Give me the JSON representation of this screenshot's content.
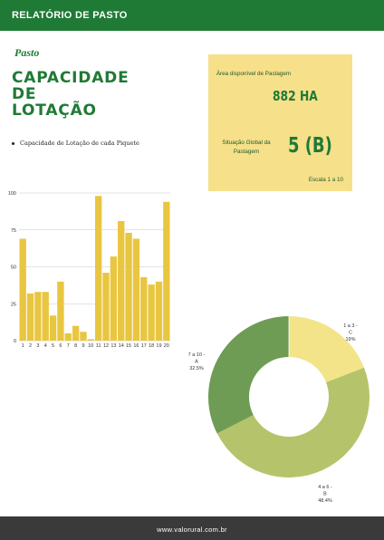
{
  "header": {
    "title": "RELATÓRIO DE PASTO"
  },
  "section": {
    "label": "Pasto"
  },
  "heading": {
    "lines": [
      "CAPACIDADE",
      "DE",
      "LOTAÇÃO"
    ]
  },
  "bullet": {
    "text": "Capacidade de Lotação de cada Piquete"
  },
  "info": {
    "area_label": "Área disponível de Pastagem",
    "area_value": "882 HA",
    "situation_label": "Situação Global da Pastagem",
    "situation_value": "5 (B)",
    "scale_note": "Escala 1 a 10"
  },
  "colors": {
    "accent": "#1f7a35",
    "bar": "#e9c640",
    "info_bg": "#f6e08a",
    "footer": "#3a3a3a"
  },
  "chart_data": [
    {
      "type": "bar",
      "categories": [
        "1",
        "2",
        "3",
        "4",
        "5",
        "6",
        "7",
        "8",
        "9",
        "10",
        "11",
        "12",
        "13",
        "14",
        "15",
        "16",
        "17",
        "18",
        "19",
        "20"
      ],
      "values": [
        69,
        32,
        33,
        33,
        17,
        40,
        5,
        10,
        6,
        1,
        98,
        46,
        57,
        81,
        73,
        69,
        43,
        38,
        40,
        94
      ],
      "ylim": [
        0,
        100
      ],
      "yticks": [
        0,
        25,
        50,
        75,
        100
      ],
      "grid": true
    },
    {
      "type": "pie",
      "donut": true,
      "slices": [
        {
          "label": "1 a 3 - C",
          "percent": "19%",
          "value": 19.1,
          "color": "#f3e48a"
        },
        {
          "label": "4 a 6 - B",
          "percent": "48.4%",
          "value": 48.4,
          "color": "#b5c46a"
        },
        {
          "label": "7 a 10 - A",
          "percent": "32.5%",
          "value": 32.5,
          "color": "#6f9c54"
        }
      ]
    }
  ],
  "footer": {
    "text": "www.valorural.com.br"
  }
}
